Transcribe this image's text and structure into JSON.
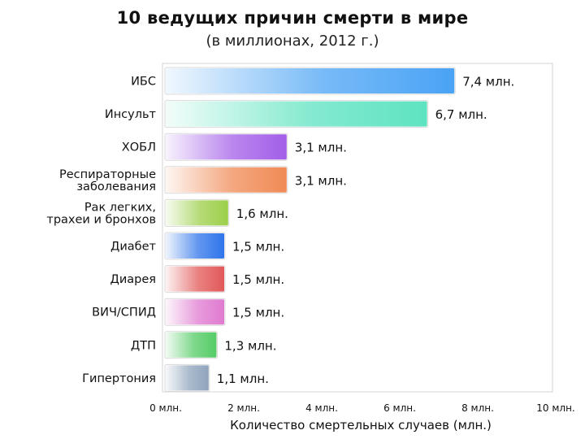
{
  "chart_data": {
    "type": "bar",
    "orientation": "horizontal",
    "title": "10 ведущих причин смерти в мире",
    "subtitle": "(в миллионах, 2012 г.)",
    "xlabel": "Количество смертельных случаев (млн.)",
    "xlim": [
      0,
      10
    ],
    "xticks": [
      0,
      2,
      4,
      6,
      8,
      10
    ],
    "xtick_labels": [
      "0 млн.",
      "2 млн.",
      "4 млн.",
      "6 млн.",
      "8 млн.",
      "10 млн."
    ],
    "grid": false,
    "categories": [
      [
        "ИБС"
      ],
      [
        "Инсульт"
      ],
      [
        "ХОБЛ"
      ],
      [
        "Респираторные",
        "заболевания"
      ],
      [
        "Рак легких,",
        "трахеи и бронхов"
      ],
      [
        "Диабет"
      ],
      [
        "Диарея"
      ],
      [
        "ВИЧ/СПИД"
      ],
      [
        "ДТП"
      ],
      [
        "Гипертония"
      ]
    ],
    "values": [
      7.4,
      6.7,
      3.1,
      3.1,
      1.6,
      1.5,
      1.5,
      1.5,
      1.3,
      1.1
    ],
    "data_labels": [
      "7,4 млн.",
      "6,7 млн.",
      "3,1 млн.",
      "3,1 млн.",
      "1,6 млн.",
      "1,5 млн.",
      "1,5 млн.",
      "1,5 млн.",
      "1,3 млн.",
      "1,1 млн."
    ],
    "colors": [
      "#4aa3f5",
      "#5de3c0",
      "#a35ee8",
      "#f08a55",
      "#9ccf4a",
      "#2f75ea",
      "#e25858",
      "#e07ad0",
      "#55cc66",
      "#8fa4bc"
    ]
  }
}
